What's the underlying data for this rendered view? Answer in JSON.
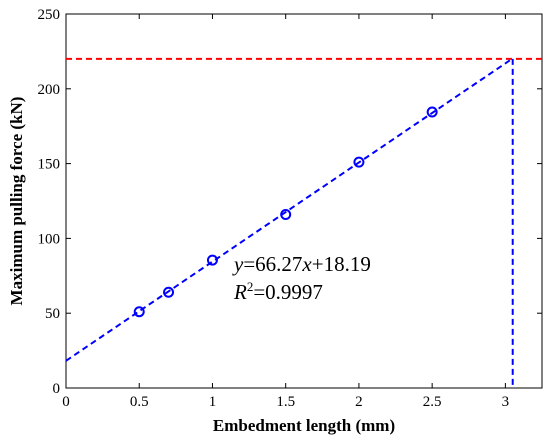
{
  "chart_data": {
    "type": "scatter",
    "xlabel": "Embedment length (mm)",
    "ylabel": "Maximum pulling force (kN)",
    "xlim": [
      0,
      3.25
    ],
    "ylim": [
      0,
      250
    ],
    "xticks": [
      0,
      0.5,
      1,
      1.5,
      2,
      2.5,
      3
    ],
    "yticks": [
      0,
      50,
      100,
      150,
      200,
      250
    ],
    "xtick_labels": [
      "0",
      "0.5",
      "1",
      "1.5",
      "2",
      "2.5",
      "3"
    ],
    "ytick_labels": [
      "0",
      "50",
      "100",
      "150",
      "200",
      "250"
    ],
    "grid": false,
    "points": {
      "x": [
        0.5,
        0.7,
        1.0,
        1.5,
        2.0,
        2.5
      ],
      "y": [
        51,
        64,
        85.5,
        116,
        151,
        184.5
      ],
      "marker": "open-circle",
      "color": "#0000ff"
    },
    "fit_line": {
      "slope": 66.27,
      "intercept": 18.19,
      "x_range": [
        0,
        3.05
      ],
      "color": "#0000ff",
      "style": "dashed"
    },
    "horizontal_reference": {
      "y": 220,
      "color": "#ff0000",
      "style": "dashed"
    },
    "vertical_reference": {
      "x": 3.05,
      "color": "#0000ff",
      "style": "dashed"
    },
    "annotation": {
      "equation": {
        "y": "y",
        "eq1": "=66.27",
        "x": "x",
        "rest": "+18.19"
      },
      "r2": {
        "R": "R",
        "sup": "2",
        "rest": "=0.9997"
      }
    }
  }
}
